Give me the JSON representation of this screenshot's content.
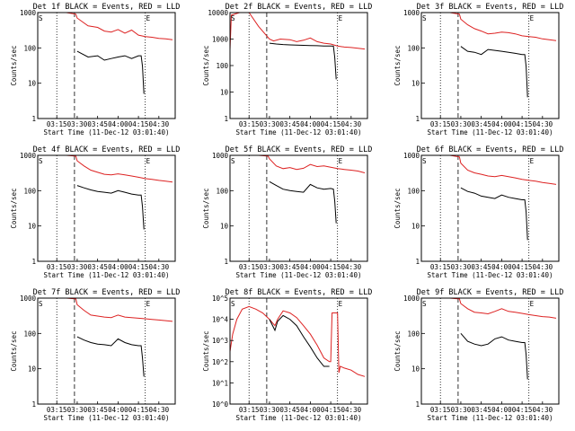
{
  "figure": {
    "background": "#ffffff",
    "event_color": "#000000",
    "lld_color": "#dd2222",
    "frame_color": "#000000"
  },
  "chart_data": [
    {
      "type": "line",
      "title": "Det 1f BLACK = Events, RED = LLD",
      "xlabel": "Start Time (11-Dec-12 03:01:40)",
      "ylabel": "Counts/sec",
      "x_ticks": [
        "03:15",
        "03:30",
        "03:45",
        "04:00",
        "04:15",
        "04:30"
      ],
      "y_ticks": [
        "1",
        "10",
        "100",
        "1000"
      ],
      "ylim": [
        1,
        1000
      ],
      "y_scale": "log",
      "markers": [
        "S",
        "E"
      ],
      "series": [
        {
          "name": "LLD",
          "color": "red",
          "x": [
            "03:01",
            "03:03",
            "03:08",
            "03:15",
            "03:22",
            "03:29",
            "03:30",
            "03:38",
            "03:45",
            "03:50",
            "03:55",
            "04:00",
            "04:05",
            "04:10",
            "04:15",
            "04:20",
            "04:25",
            "04:30",
            "04:35",
            "04:40"
          ],
          "values": [
            1000,
            1000,
            1000,
            1000,
            1000,
            900,
            700,
            420,
            380,
            300,
            280,
            330,
            260,
            320,
            230,
            210,
            200,
            185,
            180,
            170
          ]
        },
        {
          "name": "Events",
          "color": "black",
          "x": [
            "03:30",
            "03:38",
            "03:45",
            "03:50",
            "03:55",
            "04:00",
            "04:05",
            "04:10",
            "04:15",
            "04:17",
            "04:18",
            "04:19"
          ],
          "values": [
            80,
            55,
            60,
            45,
            50,
            55,
            60,
            50,
            60,
            60,
            30,
            5
          ]
        }
      ]
    },
    {
      "type": "line",
      "title": "Det 2f BLACK = Events, RED = LLD",
      "xlabel": "Start Time (11-Dec-12 03:01:40)",
      "ylabel": "Counts/sec",
      "x_ticks": [
        "03:15",
        "03:30",
        "03:45",
        "04:00",
        "04:15",
        "04:30"
      ],
      "y_ticks": [
        "1",
        "10",
        "100",
        "1000",
        "10000"
      ],
      "ylim": [
        1,
        10000
      ],
      "y_scale": "log",
      "markers": [
        "S",
        "E"
      ],
      "series": [
        {
          "name": "LLD",
          "color": "red",
          "x": [
            "03:01",
            "03:02",
            "03:08",
            "03:15",
            "03:22",
            "03:30",
            "03:33",
            "03:38",
            "03:45",
            "03:50",
            "03:55",
            "04:00",
            "04:05",
            "04:10",
            "04:15",
            "04:20",
            "04:25",
            "04:30",
            "04:35",
            "04:40"
          ],
          "values": [
            400,
            8000,
            10000,
            10000,
            3000,
            1000,
            850,
            1000,
            950,
            800,
            900,
            1100,
            800,
            700,
            650,
            550,
            500,
            480,
            450,
            420
          ]
        },
        {
          "name": "Events",
          "color": "black",
          "x": [
            "03:30",
            "03:35",
            "03:40",
            "03:45",
            "03:50",
            "03:55",
            "04:00",
            "04:05",
            "04:10",
            "04:15",
            "04:17",
            "04:18",
            "04:19"
          ],
          "values": [
            700,
            650,
            620,
            600,
            590,
            580,
            570,
            560,
            550,
            550,
            540,
            200,
            30
          ]
        }
      ]
    },
    {
      "type": "line",
      "title": "Det 3f BLACK = Events, RED = LLD",
      "xlabel": "Start Time (11-Dec-12 03:01:40)",
      "ylabel": "Counts/sec",
      "x_ticks": [
        "03:15",
        "03:30",
        "03:45",
        "04:00",
        "04:15",
        "04:30"
      ],
      "y_ticks": [
        "1",
        "10",
        "100",
        "1000"
      ],
      "ylim": [
        1,
        1000
      ],
      "y_scale": "log",
      "markers": [
        "S",
        "E"
      ],
      "series": [
        {
          "name": "LLD",
          "color": "red",
          "x": [
            "03:01",
            "03:03",
            "03:08",
            "03:15",
            "03:22",
            "03:29",
            "03:30",
            "03:35",
            "03:40",
            "03:45",
            "03:50",
            "03:55",
            "04:00",
            "04:05",
            "04:10",
            "04:15",
            "04:20",
            "04:25",
            "04:30",
            "04:35",
            "04:40"
          ],
          "values": [
            1000,
            1000,
            1000,
            1000,
            1000,
            900,
            650,
            450,
            350,
            300,
            250,
            260,
            280,
            270,
            250,
            220,
            210,
            200,
            180,
            170,
            160
          ]
        },
        {
          "name": "Events",
          "color": "black",
          "x": [
            "03:30",
            "03:35",
            "03:40",
            "03:45",
            "03:50",
            "03:55",
            "04:00",
            "04:05",
            "04:10",
            "04:15",
            "04:17",
            "04:18",
            "04:19"
          ],
          "values": [
            110,
            80,
            75,
            65,
            90,
            85,
            80,
            75,
            70,
            65,
            65,
            30,
            4
          ]
        }
      ]
    },
    {
      "type": "line",
      "title": "Det 4f BLACK = Events, RED = LLD",
      "xlabel": "Start Time (11-Dec-12 03:01:40)",
      "ylabel": "Counts/sec",
      "x_ticks": [
        "03:15",
        "03:30",
        "03:45",
        "04:00",
        "04:15",
        "04:30"
      ],
      "y_ticks": [
        "1",
        "10",
        "100",
        "1000"
      ],
      "ylim": [
        1,
        1000
      ],
      "y_scale": "log",
      "markers": [
        "S",
        "E"
      ],
      "series": [
        {
          "name": "LLD",
          "color": "red",
          "x": [
            "03:01",
            "03:03",
            "03:08",
            "03:15",
            "03:22",
            "03:29",
            "03:30",
            "03:35",
            "03:40",
            "03:45",
            "03:50",
            "03:55",
            "04:00",
            "04:05",
            "04:10",
            "04:15",
            "04:20",
            "04:25",
            "04:30",
            "04:35",
            "04:40"
          ],
          "values": [
            1000,
            1000,
            1000,
            1000,
            1000,
            950,
            700,
            500,
            380,
            330,
            290,
            280,
            300,
            280,
            260,
            240,
            220,
            210,
            195,
            185,
            175
          ]
        },
        {
          "name": "Events",
          "color": "black",
          "x": [
            "03:30",
            "03:35",
            "03:40",
            "03:45",
            "03:50",
            "03:55",
            "04:00",
            "04:05",
            "04:10",
            "04:15",
            "04:17",
            "04:18",
            "04:19"
          ],
          "values": [
            140,
            120,
            105,
            95,
            90,
            85,
            100,
            90,
            80,
            75,
            75,
            35,
            8
          ]
        }
      ]
    },
    {
      "type": "line",
      "title": "Det 5f BLACK = Events, RED = LLD",
      "xlabel": "Start Time (11-Dec-12 03:01:40)",
      "ylabel": "Counts/sec",
      "x_ticks": [
        "03:15",
        "03:30",
        "03:45",
        "04:00",
        "04:15",
        "04:30"
      ],
      "y_ticks": [
        "1",
        "10",
        "100",
        "1000"
      ],
      "ylim": [
        1,
        1000
      ],
      "y_scale": "log",
      "markers": [
        "S",
        "E"
      ],
      "series": [
        {
          "name": "LLD",
          "color": "red",
          "x": [
            "03:01",
            "03:03",
            "03:08",
            "03:15",
            "03:22",
            "03:29",
            "03:30",
            "03:35",
            "03:40",
            "03:45",
            "03:50",
            "03:55",
            "04:00",
            "04:05",
            "04:10",
            "04:15",
            "04:20",
            "04:25",
            "04:30",
            "04:35",
            "04:40"
          ],
          "values": [
            1000,
            1000,
            1000,
            1000,
            1000,
            950,
            800,
            500,
            420,
            450,
            400,
            430,
            550,
            480,
            500,
            460,
            420,
            400,
            380,
            360,
            320
          ]
        },
        {
          "name": "Events",
          "color": "black",
          "x": [
            "03:30",
            "03:35",
            "03:40",
            "03:45",
            "03:50",
            "03:55",
            "04:00",
            "04:05",
            "04:10",
            "04:15",
            "04:17",
            "04:18",
            "04:19"
          ],
          "values": [
            180,
            140,
            110,
            100,
            95,
            90,
            150,
            120,
            110,
            115,
            110,
            50,
            12
          ]
        }
      ]
    },
    {
      "type": "line",
      "title": "Det 6f BLACK = Events, RED = LLD",
      "xlabel": "Start Time (11-Dec-12 03:01:40)",
      "ylabel": "Counts/sec",
      "x_ticks": [
        "03:15",
        "03:30",
        "03:45",
        "04:00",
        "04:15",
        "04:30"
      ],
      "y_ticks": [
        "1",
        "10",
        "100",
        "1000"
      ],
      "ylim": [
        1,
        1000
      ],
      "y_scale": "log",
      "markers": [
        "S",
        "E"
      ],
      "series": [
        {
          "name": "LLD",
          "color": "red",
          "x": [
            "03:01",
            "03:03",
            "03:08",
            "03:15",
            "03:22",
            "03:29",
            "03:30",
            "03:35",
            "03:40",
            "03:45",
            "03:50",
            "03:55",
            "04:00",
            "04:05",
            "04:10",
            "04:15",
            "04:20",
            "04:25",
            "04:30",
            "04:35",
            "04:40"
          ],
          "values": [
            1000,
            1000,
            1000,
            1000,
            1000,
            900,
            600,
            380,
            320,
            290,
            260,
            250,
            270,
            250,
            230,
            210,
            195,
            185,
            170,
            160,
            150
          ]
        },
        {
          "name": "Events",
          "color": "black",
          "x": [
            "03:30",
            "03:35",
            "03:40",
            "03:45",
            "03:50",
            "03:55",
            "04:00",
            "04:05",
            "04:10",
            "04:15",
            "04:17",
            "04:18",
            "04:19"
          ],
          "values": [
            120,
            95,
            85,
            70,
            65,
            60,
            75,
            65,
            60,
            55,
            55,
            25,
            4
          ]
        }
      ]
    },
    {
      "type": "line",
      "title": "Det 7f BLACK = Events, RED = LLD",
      "xlabel": "Start Time (11-Dec-12 03:01:40)",
      "ylabel": "Counts/sec",
      "x_ticks": [
        "03:15",
        "03:30",
        "03:45",
        "04:00",
        "04:15",
        "04:30"
      ],
      "y_ticks": [
        "1",
        "10",
        "100",
        "1000"
      ],
      "ylim": [
        1,
        1000
      ],
      "y_scale": "log",
      "markers": [
        "S",
        "E"
      ],
      "series": [
        {
          "name": "LLD",
          "color": "red",
          "x": [
            "03:01",
            "03:03",
            "03:08",
            "03:15",
            "03:22",
            "03:29",
            "03:30",
            "03:35",
            "03:40",
            "03:45",
            "03:50",
            "03:55",
            "04:00",
            "04:05",
            "04:10",
            "04:15",
            "04:20",
            "04:25",
            "04:30",
            "04:35",
            "04:40"
          ],
          "values": [
            1000,
            1000,
            1000,
            1000,
            1000,
            950,
            650,
            450,
            330,
            310,
            290,
            280,
            330,
            290,
            280,
            270,
            260,
            250,
            240,
            230,
            220
          ]
        },
        {
          "name": "Events",
          "color": "black",
          "x": [
            "03:30",
            "03:35",
            "03:40",
            "03:45",
            "03:50",
            "03:55",
            "04:00",
            "04:05",
            "04:10",
            "04:15",
            "04:17",
            "04:18",
            "04:19"
          ],
          "values": [
            80,
            65,
            55,
            50,
            48,
            45,
            70,
            55,
            48,
            45,
            45,
            20,
            6
          ]
        }
      ]
    },
    {
      "type": "line",
      "title": "Det 8f BLACK = Events, RED = LLD",
      "xlabel": "Start Time (11-Dec-12 03:01:40)",
      "ylabel": "Counts/sec",
      "x_ticks": [
        "03:15",
        "03:30",
        "03:45",
        "04:00",
        "04:15",
        "04:30"
      ],
      "y_ticks": [
        "10^0",
        "10^1",
        "10^2",
        "10^3",
        "10^4",
        "10^5"
      ],
      "ylim": [
        1,
        100000
      ],
      "y_scale": "log",
      "markers": [
        "S",
        "E"
      ],
      "series": [
        {
          "name": "LLD",
          "color": "red",
          "x": [
            "03:01",
            "03:03",
            "03:06",
            "03:10",
            "03:15",
            "03:20",
            "03:25",
            "03:30",
            "03:34",
            "03:36",
            "03:40",
            "03:45",
            "03:50",
            "03:55",
            "04:00",
            "04:05",
            "04:10",
            "04:14",
            "04:15",
            "04:16",
            "04:20",
            "04:21",
            "04:22",
            "04:25",
            "04:30",
            "04:35",
            "04:40"
          ],
          "values": [
            300,
            2000,
            10000,
            30000,
            40000,
            30000,
            20000,
            10000,
            5000,
            10000,
            25000,
            20000,
            12000,
            5000,
            2000,
            600,
            150,
            100,
            100,
            20000,
            20000,
            30,
            60,
            50,
            40,
            25,
            20
          ]
        },
        {
          "name": "Events",
          "color": "black",
          "x": [
            "03:30",
            "03:34",
            "03:36",
            "03:40",
            "03:45",
            "03:50",
            "03:55",
            "04:00",
            "04:05",
            "04:10",
            "04:14"
          ],
          "values": [
            10000,
            3000,
            8000,
            15000,
            10000,
            5000,
            1500,
            500,
            150,
            60,
            60
          ]
        }
      ]
    },
    {
      "type": "line",
      "title": "Det 9f BLACK = Events, RED = LLD",
      "xlabel": "Start Time (11-Dec-12 03:01:40)",
      "ylabel": "Counts/sec",
      "x_ticks": [
        "03:15",
        "03:30",
        "03:45",
        "04:00",
        "04:15",
        "04:30"
      ],
      "y_ticks": [
        "1",
        "10",
        "100",
        "1000"
      ],
      "ylim": [
        1,
        1000
      ],
      "y_scale": "log",
      "markers": [
        "S",
        "E"
      ],
      "series": [
        {
          "name": "LLD",
          "color": "red",
          "x": [
            "03:01",
            "03:03",
            "03:08",
            "03:15",
            "03:22",
            "03:29",
            "03:30",
            "03:35",
            "03:40",
            "03:45",
            "03:50",
            "03:55",
            "04:00",
            "04:05",
            "04:10",
            "04:15",
            "04:20",
            "04:25",
            "04:30",
            "04:35",
            "04:40"
          ],
          "values": [
            1000,
            1000,
            1000,
            1000,
            1000,
            950,
            700,
            500,
            400,
            380,
            360,
            420,
            500,
            420,
            400,
            370,
            340,
            320,
            300,
            290,
            270
          ]
        },
        {
          "name": "Events",
          "color": "black",
          "x": [
            "03:30",
            "03:35",
            "03:40",
            "03:45",
            "03:50",
            "03:55",
            "04:00",
            "04:05",
            "04:10",
            "04:15",
            "04:17",
            "04:18",
            "04:19"
          ],
          "values": [
            100,
            60,
            50,
            45,
            50,
            70,
            80,
            65,
            60,
            55,
            55,
            25,
            5
          ]
        }
      ]
    }
  ]
}
